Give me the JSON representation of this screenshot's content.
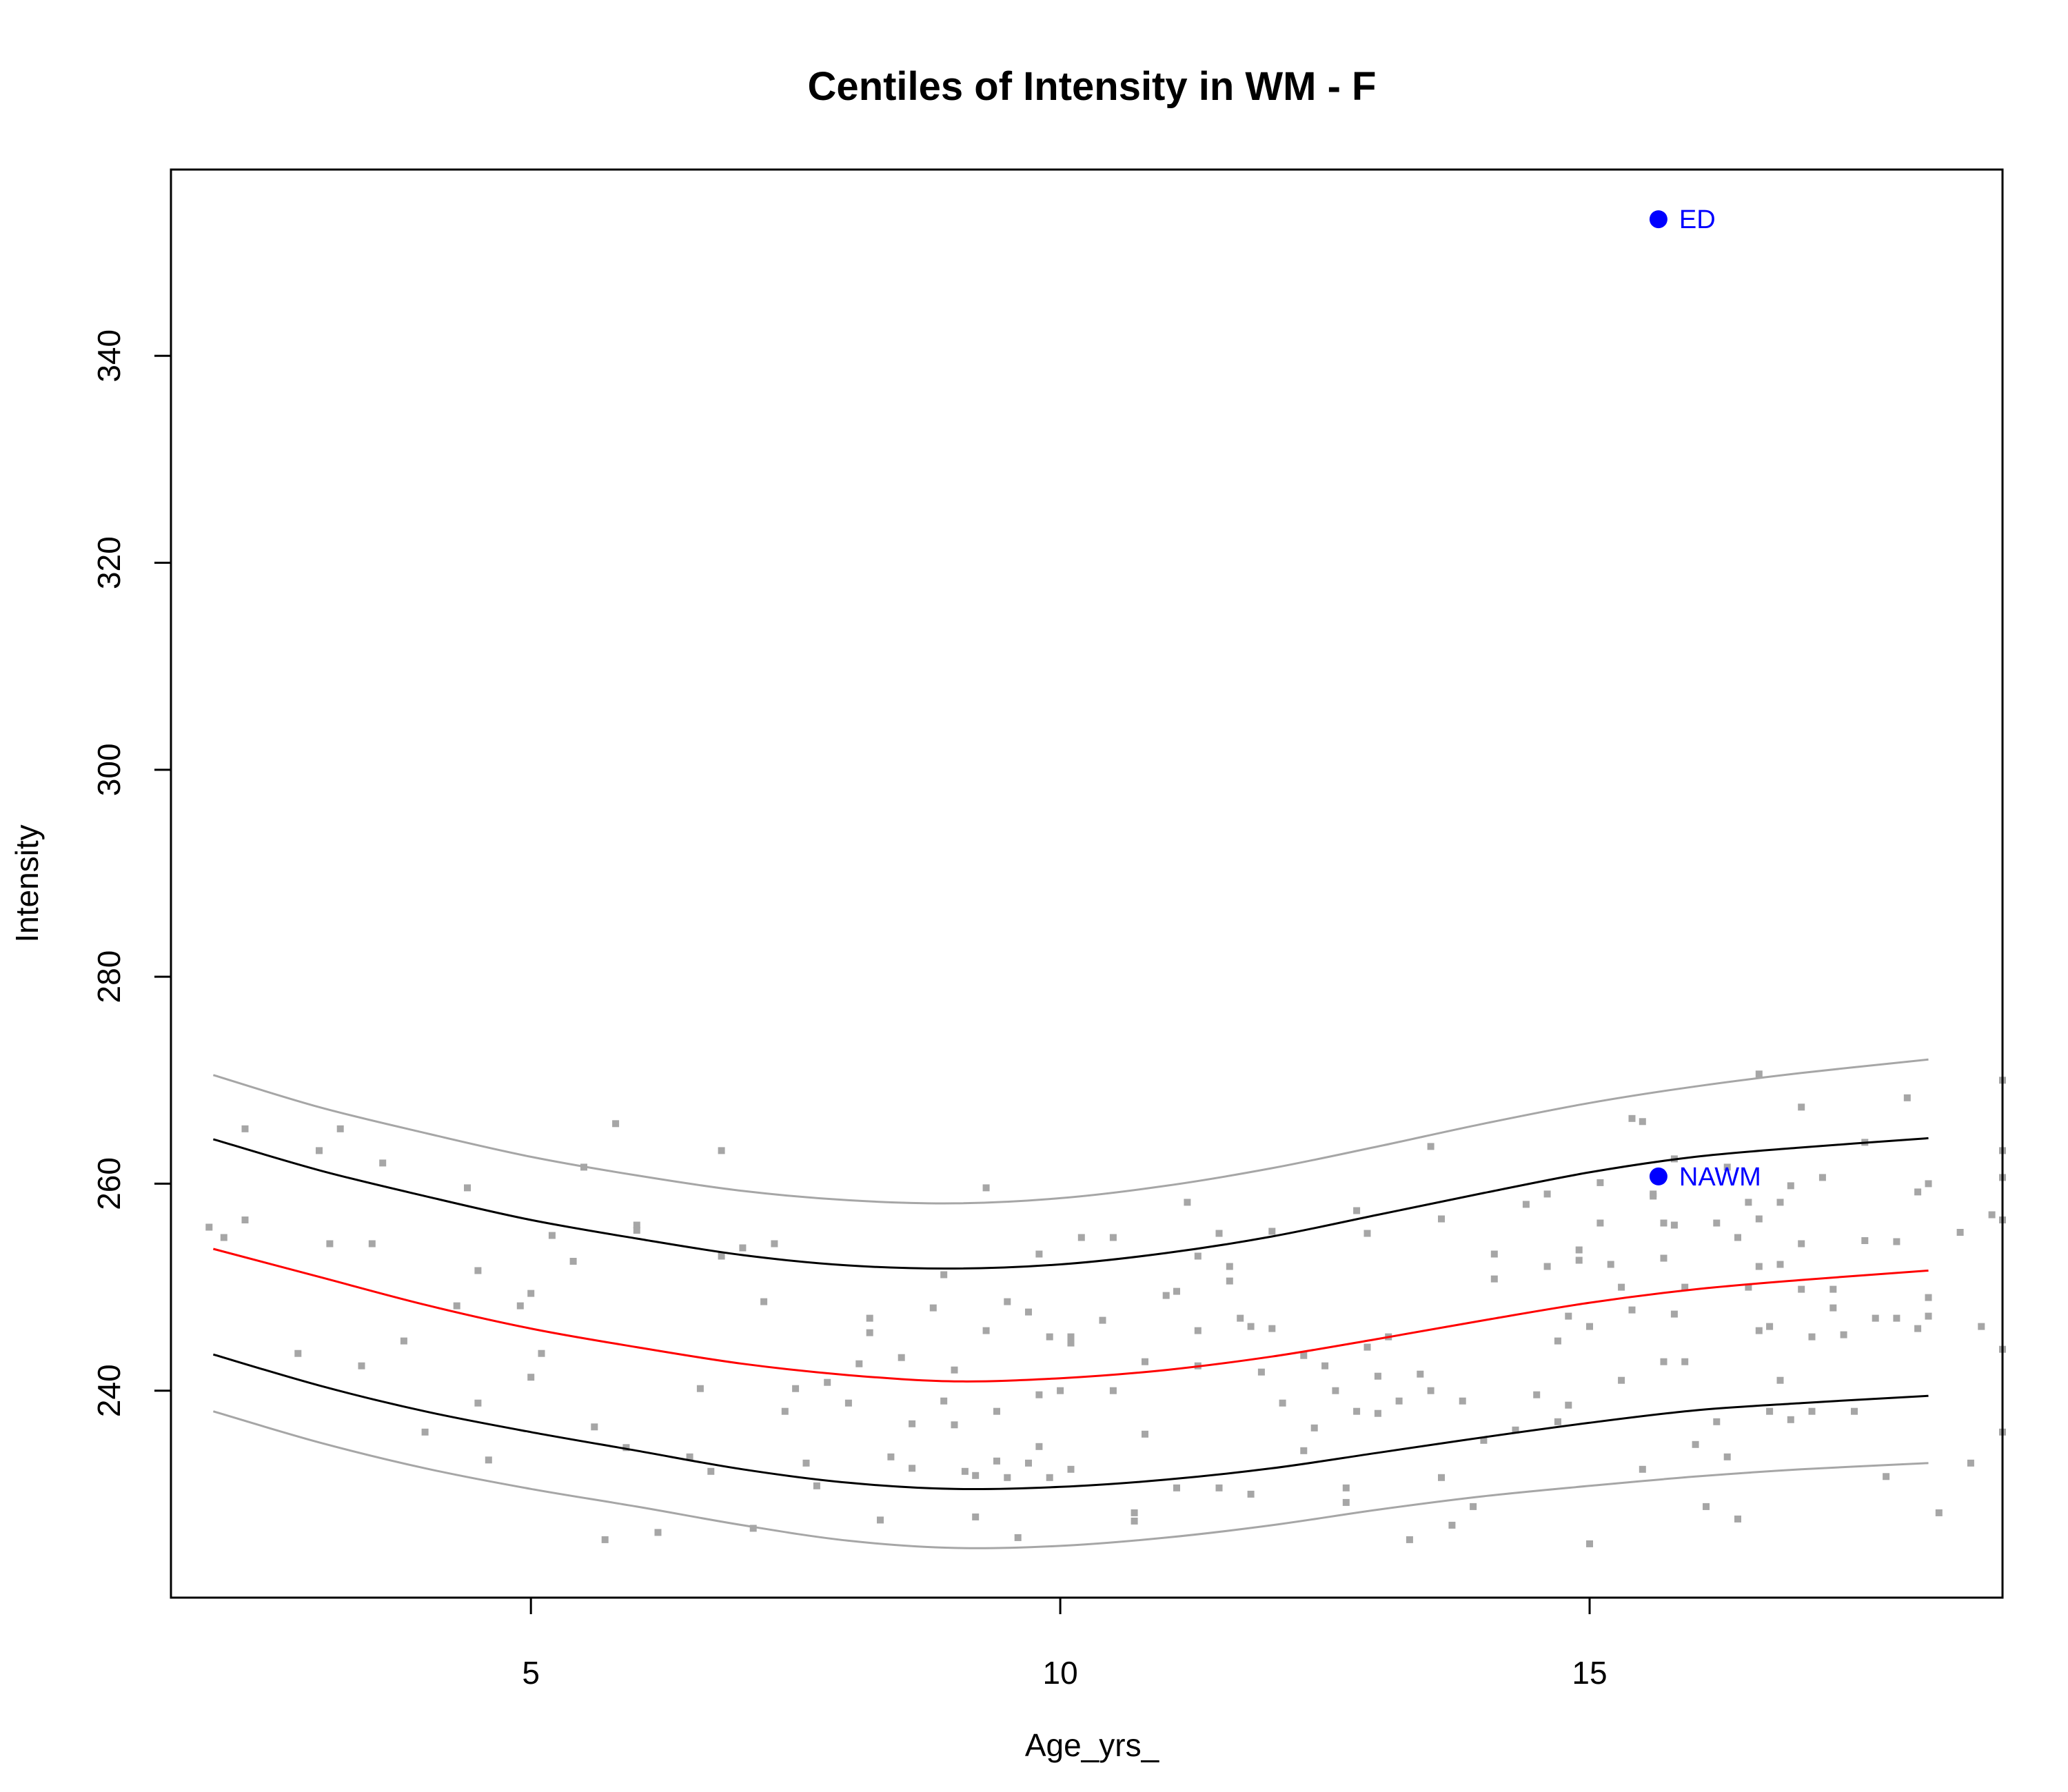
{
  "chart_data": {
    "type": "scatter",
    "title": "Centiles of Intensity in WM - F",
    "xlabel": "Age_yrs_",
    "ylabel": "Intensity",
    "xlim": [
      1.6,
      18.9
    ],
    "ylim": [
      220,
      358
    ],
    "x_ticks": [
      5,
      10,
      15
    ],
    "y_ticks": [
      240,
      260,
      280,
      300,
      320,
      340
    ],
    "grid": false,
    "legend": "none",
    "colors": {
      "scatter": "#a6a6a6",
      "median": "#ff0000",
      "inner": "#000000",
      "outer": "#a6a6a6",
      "highlight": "#0000ff"
    },
    "centiles": [
      {
        "level": "outer-lower",
        "color": "#a6a6a6",
        "x": [
          2,
          3,
          4,
          5,
          6,
          7,
          8,
          9,
          10,
          11,
          12,
          13,
          14,
          15,
          16,
          17,
          18.2
        ],
        "y": [
          238,
          235,
          232.5,
          230.5,
          228.8,
          227,
          225.5,
          224.8,
          225,
          225.8,
          227,
          228.5,
          229.8,
          230.8,
          231.7,
          232.4,
          233
        ]
      },
      {
        "level": "inner-lower",
        "color": "#000000",
        "x": [
          2,
          3,
          4,
          5,
          6,
          7,
          8,
          9,
          10,
          11,
          12,
          13,
          14,
          15,
          16,
          17,
          18.2
        ],
        "y": [
          243.5,
          240.5,
          238,
          236,
          234.2,
          232.4,
          231.1,
          230.5,
          230.7,
          231.4,
          232.5,
          234,
          235.5,
          236.9,
          238.1,
          238.8,
          239.5
        ]
      },
      {
        "level": "median",
        "color": "#ff0000",
        "x": [
          2,
          3,
          4,
          5,
          6,
          7,
          8,
          9,
          10,
          11,
          12,
          13,
          14,
          15,
          16,
          17,
          18.2
        ],
        "y": [
          253.7,
          251,
          248.3,
          246,
          244.2,
          242.6,
          241.5,
          240.9,
          241.2,
          242,
          243.3,
          245,
          246.8,
          248.5,
          249.8,
          250.7,
          251.6
        ]
      },
      {
        "level": "inner-upper",
        "color": "#000000",
        "x": [
          2,
          3,
          4,
          5,
          6,
          7,
          8,
          9,
          10,
          11,
          12,
          13,
          14,
          15,
          16,
          17,
          18.2
        ],
        "y": [
          264.3,
          261.3,
          258.8,
          256.5,
          254.7,
          253.1,
          252.1,
          251.8,
          252.2,
          253.3,
          254.9,
          257,
          259.1,
          261.1,
          262.6,
          263.5,
          264.4
        ]
      },
      {
        "level": "outer-upper",
        "color": "#a6a6a6",
        "x": [
          2,
          3,
          4,
          5,
          6,
          7,
          8,
          9,
          10,
          11,
          12,
          13,
          14,
          15,
          16,
          17,
          18.2
        ],
        "y": [
          270.5,
          267.4,
          264.9,
          262.6,
          260.8,
          259.3,
          258.4,
          258.1,
          258.6,
          259.8,
          261.5,
          263.6,
          265.8,
          267.8,
          269.4,
          270.7,
          272
        ]
      }
    ],
    "highlights": [
      {
        "label": "ED",
        "x": 15.65,
        "y": 353.2,
        "color": "#0000ff"
      },
      {
        "label": "NAWM",
        "x": 15.65,
        "y": 260.7,
        "color": "#0000ff"
      }
    ],
    "scatter": {
      "color": "#a6a6a6",
      "points": [
        [
          1.96,
          255.8
        ],
        [
          2.1,
          254.8
        ],
        [
          2.3,
          265.3
        ],
        [
          2.3,
          256.5
        ],
        [
          2.8,
          243.6
        ],
        [
          3.0,
          263.2
        ],
        [
          3.1,
          254.2
        ],
        [
          3.2,
          265.3
        ],
        [
          3.4,
          242.4
        ],
        [
          3.5,
          254.2
        ],
        [
          3.6,
          262.0
        ],
        [
          3.8,
          244.8
        ],
        [
          4.0,
          236.0
        ],
        [
          4.3,
          248.2
        ],
        [
          4.4,
          259.6
        ],
        [
          4.5,
          251.6
        ],
        [
          4.5,
          238.8
        ],
        [
          4.6,
          233.3
        ],
        [
          4.9,
          248.2
        ],
        [
          5.0,
          249.4
        ],
        [
          5.0,
          241.3
        ],
        [
          5.1,
          243.6
        ],
        [
          5.2,
          255.0
        ],
        [
          5.4,
          252.5
        ],
        [
          5.5,
          261.6
        ],
        [
          5.6,
          236.5
        ],
        [
          5.7,
          225.6
        ],
        [
          5.8,
          265.8
        ],
        [
          5.9,
          234.5
        ],
        [
          6.0,
          256.0
        ],
        [
          6.0,
          255.5
        ],
        [
          6.2,
          226.3
        ],
        [
          6.5,
          233.6
        ],
        [
          6.6,
          240.2
        ],
        [
          6.7,
          232.2
        ],
        [
          6.8,
          263.2
        ],
        [
          6.8,
          253.0
        ],
        [
          7.0,
          253.8
        ],
        [
          7.1,
          226.7
        ],
        [
          7.2,
          248.6
        ],
        [
          7.3,
          254.2
        ],
        [
          7.4,
          238.0
        ],
        [
          7.5,
          240.2
        ],
        [
          7.6,
          233.0
        ],
        [
          7.7,
          230.8
        ],
        [
          7.8,
          240.8
        ],
        [
          8.0,
          238.8
        ],
        [
          8.1,
          242.6
        ],
        [
          8.2,
          247.0
        ],
        [
          8.2,
          245.6
        ],
        [
          8.3,
          227.5
        ],
        [
          8.4,
          233.6
        ],
        [
          8.5,
          243.2
        ],
        [
          8.6,
          232.5
        ],
        [
          8.6,
          236.8
        ],
        [
          8.8,
          248.0
        ],
        [
          8.9,
          239.0
        ],
        [
          8.9,
          251.2
        ],
        [
          9.0,
          242.0
        ],
        [
          9.0,
          236.7
        ],
        [
          9.1,
          232.2
        ],
        [
          9.2,
          227.8
        ],
        [
          9.2,
          231.8
        ],
        [
          9.3,
          245.8
        ],
        [
          9.3,
          259.6
        ],
        [
          9.4,
          238.0
        ],
        [
          9.4,
          233.2
        ],
        [
          9.5,
          231.6
        ],
        [
          9.5,
          248.6
        ],
        [
          9.6,
          225.8
        ],
        [
          9.7,
          233.0
        ],
        [
          9.7,
          247.6
        ],
        [
          9.8,
          253.2
        ],
        [
          9.8,
          239.6
        ],
        [
          9.8,
          234.6
        ],
        [
          9.9,
          231.6
        ],
        [
          9.9,
          245.2
        ],
        [
          10.0,
          240.0
        ],
        [
          10.1,
          245.2
        ],
        [
          10.1,
          244.6
        ],
        [
          10.1,
          232.4
        ],
        [
          10.2,
          254.8
        ],
        [
          10.4,
          246.8
        ],
        [
          10.5,
          240.0
        ],
        [
          10.5,
          254.8
        ],
        [
          10.7,
          228.2
        ],
        [
          10.7,
          227.4
        ],
        [
          10.8,
          242.8
        ],
        [
          10.8,
          235.8
        ],
        [
          11.0,
          249.2
        ],
        [
          11.1,
          249.6
        ],
        [
          11.1,
          230.6
        ],
        [
          11.2,
          258.2
        ],
        [
          11.3,
          253.0
        ],
        [
          11.3,
          245.8
        ],
        [
          11.3,
          242.4
        ],
        [
          11.5,
          230.6
        ],
        [
          11.5,
          255.2
        ],
        [
          11.6,
          252.0
        ],
        [
          11.6,
          250.6
        ],
        [
          11.7,
          247.0
        ],
        [
          11.8,
          230.0
        ],
        [
          11.8,
          246.2
        ],
        [
          11.9,
          241.8
        ],
        [
          12.0,
          246.0
        ],
        [
          12.0,
          255.4
        ],
        [
          12.1,
          238.8
        ],
        [
          12.3,
          243.4
        ],
        [
          12.3,
          234.2
        ],
        [
          12.4,
          236.4
        ],
        [
          12.5,
          242.4
        ],
        [
          12.6,
          240.0
        ],
        [
          12.7,
          229.2
        ],
        [
          12.7,
          230.6
        ],
        [
          12.8,
          238.0
        ],
        [
          12.8,
          257.4
        ],
        [
          12.9,
          255.2
        ],
        [
          12.9,
          244.2
        ],
        [
          13.0,
          241.4
        ],
        [
          13.0,
          237.8
        ],
        [
          13.1,
          245.2
        ],
        [
          13.2,
          239.0
        ],
        [
          13.3,
          225.6
        ],
        [
          13.4,
          241.6
        ],
        [
          13.5,
          240.0
        ],
        [
          13.5,
          263.6
        ],
        [
          13.6,
          256.6
        ],
        [
          13.6,
          231.6
        ],
        [
          13.7,
          227.0
        ],
        [
          13.8,
          239.0
        ],
        [
          13.9,
          228.8
        ],
        [
          14.0,
          235.2
        ],
        [
          14.1,
          250.8
        ],
        [
          14.1,
          253.2
        ],
        [
          14.3,
          236.2
        ],
        [
          14.4,
          258.0
        ],
        [
          14.5,
          239.6
        ],
        [
          14.6,
          259.0
        ],
        [
          14.6,
          252.0
        ],
        [
          14.7,
          244.8
        ],
        [
          14.7,
          237.0
        ],
        [
          14.8,
          238.6
        ],
        [
          14.8,
          247.2
        ],
        [
          14.9,
          252.6
        ],
        [
          14.9,
          253.6
        ],
        [
          15.0,
          225.2
        ],
        [
          15.0,
          246.2
        ],
        [
          15.1,
          260.1
        ],
        [
          15.1,
          256.2
        ],
        [
          15.2,
          252.2
        ],
        [
          15.3,
          241.0
        ],
        [
          15.3,
          250.0
        ],
        [
          15.4,
          266.3
        ],
        [
          15.4,
          247.8
        ],
        [
          15.5,
          232.4
        ],
        [
          15.5,
          266.0
        ],
        [
          15.6,
          259.0
        ],
        [
          15.6,
          258.8
        ],
        [
          15.7,
          256.2
        ],
        [
          15.7,
          252.8
        ],
        [
          15.7,
          242.8
        ],
        [
          15.8,
          247.4
        ],
        [
          15.8,
          262.4
        ],
        [
          15.8,
          256.0
        ],
        [
          15.9,
          250.0
        ],
        [
          15.9,
          242.8
        ],
        [
          16.0,
          234.8
        ],
        [
          16.1,
          228.8
        ],
        [
          16.2,
          237.0
        ],
        [
          16.2,
          256.2
        ],
        [
          16.3,
          261.6
        ],
        [
          16.3,
          233.6
        ],
        [
          16.4,
          227.6
        ],
        [
          16.4,
          254.8
        ],
        [
          16.5,
          250.0
        ],
        [
          16.5,
          258.2
        ],
        [
          16.6,
          245.8
        ],
        [
          16.6,
          270.6
        ],
        [
          16.6,
          256.6
        ],
        [
          16.6,
          252.0
        ],
        [
          16.7,
          246.2
        ],
        [
          16.7,
          238.0
        ],
        [
          16.8,
          258.2
        ],
        [
          16.8,
          252.2
        ],
        [
          16.8,
          241.0
        ],
        [
          16.9,
          237.2
        ],
        [
          16.9,
          259.8
        ],
        [
          17.0,
          249.8
        ],
        [
          17.0,
          267.4
        ],
        [
          17.0,
          254.2
        ],
        [
          17.1,
          245.2
        ],
        [
          17.1,
          238.0
        ],
        [
          17.2,
          260.6
        ],
        [
          17.3,
          248.0
        ],
        [
          17.3,
          249.8
        ],
        [
          17.4,
          245.4
        ],
        [
          17.5,
          238.0
        ],
        [
          17.6,
          264.0
        ],
        [
          17.6,
          254.5
        ],
        [
          17.7,
          247.0
        ],
        [
          17.8,
          231.7
        ],
        [
          17.9,
          254.4
        ],
        [
          17.9,
          247.0
        ],
        [
          18.0,
          268.3
        ],
        [
          18.1,
          259.2
        ],
        [
          18.1,
          246.0
        ],
        [
          18.2,
          247.2
        ],
        [
          18.2,
          260.0
        ],
        [
          18.2,
          249.0
        ],
        [
          18.3,
          228.2
        ],
        [
          18.5,
          255.3
        ],
        [
          18.6,
          233.0
        ],
        [
          18.7,
          246.2
        ],
        [
          18.8,
          257.0
        ],
        [
          18.9,
          270.0
        ],
        [
          18.9,
          236.0
        ],
        [
          18.9,
          244.0
        ],
        [
          18.9,
          263.2
        ],
        [
          18.9,
          256.5
        ],
        [
          18.9,
          260.6
        ]
      ]
    }
  }
}
